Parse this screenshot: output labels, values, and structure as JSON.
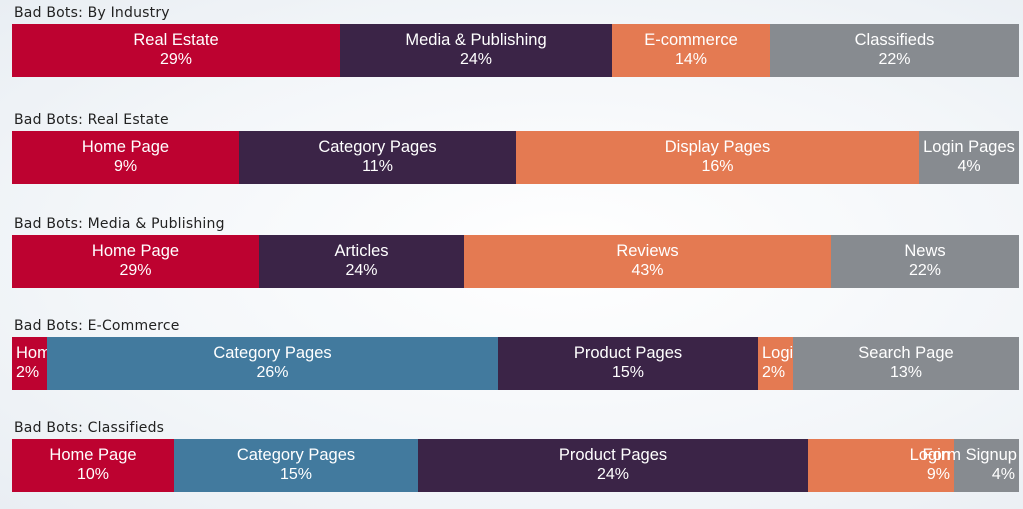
{
  "colors": {
    "red": "#bd0230",
    "purple": "#3b2447",
    "orange": "#e47a52",
    "gray": "#878b90",
    "blue": "#427a9e"
  },
  "chart_data": [
    {
      "type": "bar",
      "title": "Bad Bots: By Industry",
      "segments": [
        {
          "label": "Real Estate",
          "value": 29,
          "value_text": "29%",
          "color": "red"
        },
        {
          "label": "Media & Publishing",
          "value": 24,
          "value_text": "24%",
          "color": "purple"
        },
        {
          "label": "E-commerce",
          "value": 14,
          "value_text": "14%",
          "color": "orange"
        },
        {
          "label": "Classifieds",
          "value": 22,
          "value_text": "22%",
          "color": "gray"
        }
      ]
    },
    {
      "type": "bar",
      "title": "Bad Bots: Real Estate",
      "segments": [
        {
          "label": "Home Page",
          "value": 9,
          "value_text": "9%",
          "color": "red"
        },
        {
          "label": "Category Pages",
          "value": 11,
          "value_text": "11%",
          "color": "purple"
        },
        {
          "label": "Display Pages",
          "value": 16,
          "value_text": "16%",
          "color": "orange"
        },
        {
          "label": "Login Pages",
          "value": 4,
          "value_text": "4%",
          "color": "gray"
        }
      ]
    },
    {
      "type": "bar",
      "title": "Bad Bots: Media & Publishing",
      "segments": [
        {
          "label": "Home Page",
          "value": 29,
          "value_text": "29%",
          "color": "red"
        },
        {
          "label": "Articles",
          "value": 24,
          "value_text": "24%",
          "color": "purple"
        },
        {
          "label": "Reviews",
          "value": 43,
          "value_text": "43%",
          "color": "orange"
        },
        {
          "label": "News",
          "value": 22,
          "value_text": "22%",
          "color": "gray"
        }
      ]
    },
    {
      "type": "bar",
      "title": "Bad Bots: E-Commerce",
      "segments": [
        {
          "label": "Home Page",
          "value": 2,
          "value_text": "2%",
          "color": "red"
        },
        {
          "label": "Category Pages",
          "value": 26,
          "value_text": "26%",
          "color": "blue"
        },
        {
          "label": "Product Pages",
          "value": 15,
          "value_text": "15%",
          "color": "purple"
        },
        {
          "label": "Login",
          "value": 2,
          "value_text": "2%",
          "color": "orange"
        },
        {
          "label": "Search Page",
          "value": 13,
          "value_text": "13%",
          "color": "gray"
        }
      ]
    },
    {
      "type": "bar",
      "title": "Bad Bots: Classifieds",
      "segments": [
        {
          "label": "Home Page",
          "value": 10,
          "value_text": "10%",
          "color": "red"
        },
        {
          "label": "Category Pages",
          "value": 15,
          "value_text": "15%",
          "color": "blue"
        },
        {
          "label": "Product Pages",
          "value": 24,
          "value_text": "24%",
          "color": "purple"
        },
        {
          "label": "Login",
          "value": 9,
          "value_text": "9%",
          "color": "orange"
        },
        {
          "label": "Form Signup",
          "value": 4,
          "value_text": "4%",
          "color": "gray"
        }
      ]
    }
  ]
}
